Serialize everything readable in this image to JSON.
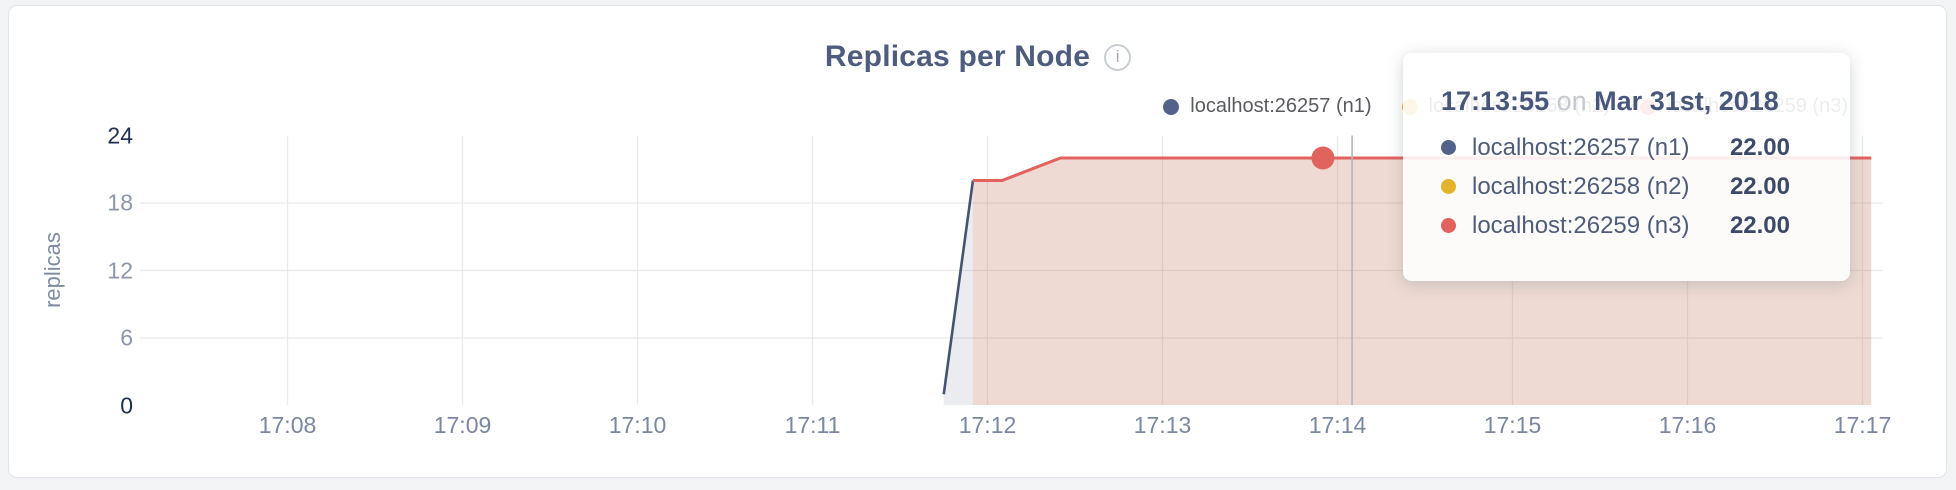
{
  "page": {
    "background": "#f3f4f5",
    "card_background": "#ffffff"
  },
  "header": {
    "title": "Replicas per Node",
    "info_glyph": "i"
  },
  "legend": {
    "position": "top-right",
    "items": [
      {
        "label": "localhost:26257 (n1)",
        "color": "#52628a"
      },
      {
        "label": "localhost:26258 (n2)",
        "color": "#e3b32c"
      },
      {
        "label": "localhost:26259 (n3)",
        "color": "#e2625d"
      }
    ]
  },
  "chart_data": {
    "type": "area",
    "title": "Replicas per Node",
    "xlabel": "",
    "ylabel": "replicas",
    "ylim": [
      0,
      24
    ],
    "y_ticks": [
      0,
      6,
      12,
      18,
      24
    ],
    "y_major_ticks": [
      0,
      24
    ],
    "x_ticks": [
      "17:08",
      "17:09",
      "17:10",
      "17:11",
      "17:12",
      "17:13",
      "17:14",
      "17:15",
      "17:16",
      "17:17"
    ],
    "x_range": [
      "17:07:09",
      "17:17:03"
    ],
    "grid": true,
    "legend_position": "top-right",
    "series": [
      {
        "name": "localhost:26257 (n1)",
        "color": "#44536f",
        "points": [
          [
            "17:11:45",
            1
          ],
          [
            "17:11:55",
            20
          ],
          [
            "17:12:05",
            20
          ],
          [
            "17:12:25",
            22
          ],
          [
            "17:17:03",
            22
          ]
        ]
      },
      {
        "name": "localhost:26258 (n2)",
        "color": "#e3b32c",
        "hidden_behind": "localhost:26259 (n3)",
        "points": [
          [
            "17:11:55",
            20
          ],
          [
            "17:12:05",
            20
          ],
          [
            "17:12:25",
            22
          ],
          [
            "17:17:03",
            22
          ]
        ]
      },
      {
        "name": "localhost:26259 (n3)",
        "color": "#e2625d",
        "points": [
          [
            "17:11:55",
            20
          ],
          [
            "17:12:05",
            20
          ],
          [
            "17:12:25",
            22
          ],
          [
            "17:17:03",
            22
          ]
        ]
      }
    ],
    "hover": {
      "time": "17:13:55",
      "value": 22,
      "crosshair_time": "17:14:05"
    },
    "colors": {
      "grid": "#e9eaeb",
      "crosshair": "#b4b7bd",
      "n1_fill": "rgba(80,97,130,0.12)",
      "stacked_fill": "rgba(188,108,76,0.25)",
      "hover_dot": "#e0635e"
    }
  },
  "tooltip": {
    "time": "17:13:55",
    "preposition": "on",
    "date": "Mar 31st, 2018",
    "rows": [
      {
        "label": "localhost:26257 (n1)",
        "value": "22.00",
        "color": "#52628a"
      },
      {
        "label": "localhost:26258 (n2)",
        "value": "22.00",
        "color": "#e3b32c"
      },
      {
        "label": "localhost:26259 (n3)",
        "value": "22.00",
        "color": "#e2625d"
      }
    ]
  }
}
